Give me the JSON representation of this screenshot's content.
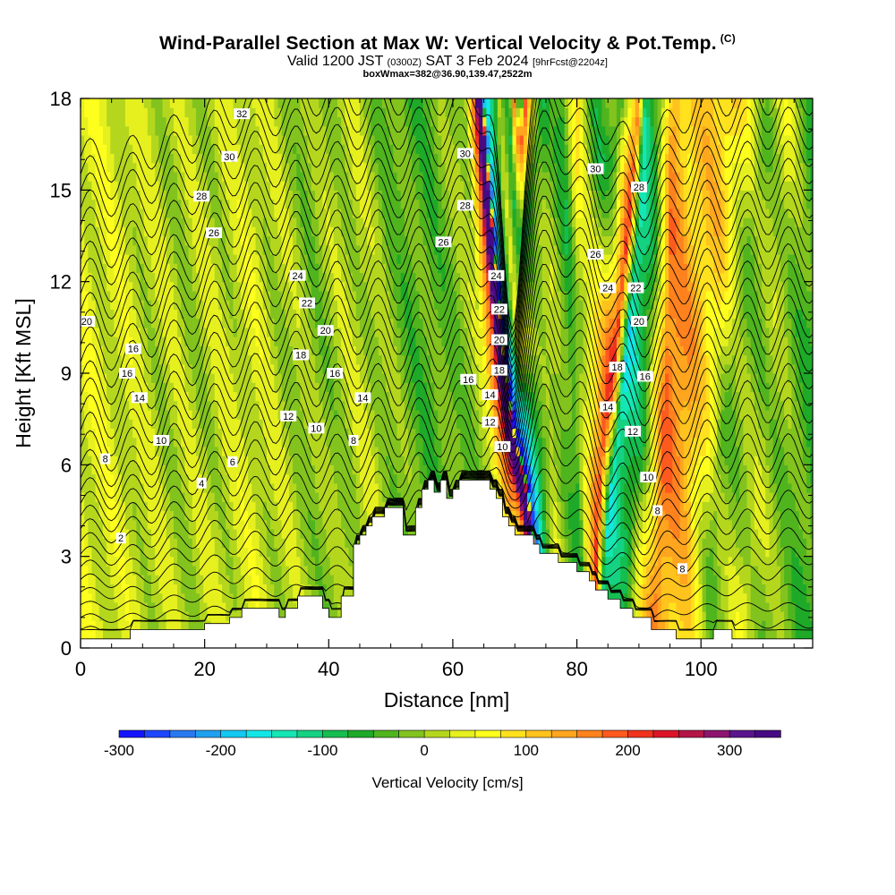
{
  "title": {
    "main": "Wind-Parallel Section at Max W: Vertical Velocity & Pot.Temp.",
    "copyright_mark": "(C)",
    "valid_prefix": "Valid 1200 JST",
    "valid_utc": "(0300Z)",
    "valid_date": "SAT 3 Feb 2024",
    "forecast": "[9hrFcst@2204z]",
    "box_info": "boxWmax=382@36.90,139.47,2522m"
  },
  "colors": {
    "terrain": "#ffffff",
    "contour": "#000000",
    "background": "#9bd61e"
  },
  "chart_data": {
    "type": "heatmap",
    "title": "Wind-Parallel Section at Max W: Vertical Velocity & Pot.Temp.",
    "xlabel": "Distance [nm]",
    "ylabel": "Height [Kft MSL]",
    "xlim": [
      0,
      118
    ],
    "ylim": [
      0,
      18
    ],
    "x_ticks": [
      0,
      20,
      40,
      60,
      80,
      100
    ],
    "y_ticks": [
      0,
      3,
      6,
      9,
      12,
      15,
      18
    ],
    "colorbar": {
      "label": "Vertical Velocity [cm/s]",
      "range": [
        -300,
        375
      ],
      "step": 25,
      "ticks": [
        -300,
        -200,
        -100,
        0,
        100,
        200,
        300
      ],
      "colors": [
        "#1414ff",
        "#1e46ff",
        "#2878f0",
        "#1ea0f0",
        "#14c8f0",
        "#14e6e6",
        "#14e6b4",
        "#14d282",
        "#14be50",
        "#1eaa28",
        "#50b41e",
        "#82c31e",
        "#b4d71e",
        "#e6f01e",
        "#ffff1e",
        "#ffe11e",
        "#ffc31e",
        "#ffa51e",
        "#ff821e",
        "#ff5a1e",
        "#f0321e",
        "#dc1428",
        "#b41446",
        "#8c146e",
        "#5a148c",
        "#460a82"
      ]
    },
    "terrain_profile": [
      [
        0,
        0.3
      ],
      [
        8,
        0.3
      ],
      [
        8,
        0.6
      ],
      [
        20,
        0.6
      ],
      [
        20,
        0.8
      ],
      [
        24,
        0.8
      ],
      [
        24,
        1.0
      ],
      [
        26,
        1.0
      ],
      [
        26,
        1.3
      ],
      [
        32,
        1.3
      ],
      [
        32,
        1.0
      ],
      [
        33,
        1.0
      ],
      [
        33,
        1.3
      ],
      [
        35,
        1.3
      ],
      [
        35,
        1.7
      ],
      [
        39,
        1.7
      ],
      [
        39,
        1.3
      ],
      [
        40,
        1.3
      ],
      [
        40,
        1.0
      ],
      [
        42,
        1.0
      ],
      [
        42,
        1.7
      ],
      [
        44,
        1.7
      ],
      [
        44,
        3.4
      ],
      [
        45,
        3.4
      ],
      [
        45,
        3.7
      ],
      [
        46,
        3.7
      ],
      [
        46,
        4.0
      ],
      [
        47,
        4.0
      ],
      [
        47,
        4.3
      ],
      [
        49,
        4.3
      ],
      [
        49,
        4.6
      ],
      [
        52,
        4.6
      ],
      [
        52,
        3.7
      ],
      [
        54,
        3.7
      ],
      [
        54,
        4.6
      ],
      [
        55,
        4.6
      ],
      [
        55,
        5.2
      ],
      [
        56,
        5.2
      ],
      [
        56,
        5.5
      ],
      [
        57,
        5.5
      ],
      [
        57,
        5.1
      ],
      [
        58,
        5.1
      ],
      [
        58,
        5.5
      ],
      [
        59,
        5.5
      ],
      [
        59,
        4.9
      ],
      [
        60,
        4.9
      ],
      [
        60,
        5.2
      ],
      [
        61,
        5.2
      ],
      [
        61,
        5.5
      ],
      [
        66,
        5.5
      ],
      [
        66,
        5.2
      ],
      [
        67,
        5.2
      ],
      [
        67,
        4.9
      ],
      [
        68,
        4.9
      ],
      [
        68,
        4.3
      ],
      [
        69,
        4.3
      ],
      [
        69,
        4.0
      ],
      [
        70,
        4.0
      ],
      [
        70,
        3.7
      ],
      [
        73,
        3.7
      ],
      [
        73,
        3.4
      ],
      [
        74,
        3.4
      ],
      [
        74,
        3.1
      ],
      [
        77,
        3.1
      ],
      [
        77,
        2.8
      ],
      [
        80,
        2.8
      ],
      [
        80,
        2.5
      ],
      [
        82,
        2.5
      ],
      [
        82,
        2.2
      ],
      [
        83,
        2.2
      ],
      [
        83,
        1.9
      ],
      [
        85,
        1.9
      ],
      [
        85,
        1.6
      ],
      [
        87,
        1.6
      ],
      [
        87,
        1.3
      ],
      [
        89,
        1.3
      ],
      [
        89,
        1.0
      ],
      [
        92,
        1.0
      ],
      [
        92,
        0.6
      ],
      [
        96,
        0.6
      ],
      [
        96,
        0.3
      ],
      [
        102,
        0.3
      ],
      [
        102,
        0.6
      ],
      [
        105,
        0.6
      ],
      [
        105,
        0.3
      ],
      [
        118,
        0.3
      ]
    ],
    "w_lines": [
      {
        "x": [
          0,
          17,
          28,
          39,
          47,
          52,
          57,
          62,
          66.5,
          69,
          70,
          70.8,
          71.5,
          72.5,
          76,
          80,
          84,
          86,
          90,
          94,
          98,
          103,
          110,
          118
        ],
        "w": [
          40,
          10,
          30,
          -10,
          20,
          -20,
          -40,
          -20,
          10,
          180,
          370,
          330,
          -230,
          -150,
          30,
          -60,
          170,
          -120,
          -60,
          140,
          80,
          -20,
          40,
          -50
        ],
        "width": [
          5,
          4,
          5,
          3,
          3,
          3,
          3,
          3,
          2,
          1.4,
          1.1,
          0.8,
          1.1,
          1.4,
          2,
          3,
          5,
          4,
          4,
          5,
          4,
          3,
          3,
          4
        ],
        "tilt": [
          0,
          0,
          0,
          -0.3,
          -0.3,
          -0.3,
          -0.3,
          -0.4,
          -0.6,
          -0.9,
          -1.2,
          -1.3,
          -1.1,
          -0.8,
          -0.2,
          -0.2,
          0.4,
          0.6,
          0.5,
          0.2,
          0,
          0.6,
          0.7,
          0
        ],
        "surge": [
          0,
          0,
          0,
          0,
          0,
          0,
          0,
          0,
          0,
          40,
          80,
          100,
          -80,
          -60,
          0,
          0,
          50,
          -40,
          0,
          40,
          60,
          0,
          -40,
          0
        ]
      }
    ],
    "contour_levels": [
      2,
      3,
      4,
      5,
      6,
      7,
      8,
      9,
      10,
      11,
      12,
      13,
      14,
      15,
      16,
      17,
      18,
      19,
      20,
      21,
      22,
      23,
      24,
      25,
      26,
      27,
      28,
      29,
      30,
      31,
      32,
      33,
      34
    ],
    "contour_labels": [
      {
        "x": 4,
        "y": 6.2,
        "text": "8"
      },
      {
        "x": 6.5,
        "y": 3.6,
        "text": "2"
      },
      {
        "x": 1,
        "y": 10.7,
        "text": "20"
      },
      {
        "x": 8.5,
        "y": 9.8,
        "text": "16"
      },
      {
        "x": 7.5,
        "y": 9,
        "text": "16"
      },
      {
        "x": 9.5,
        "y": 8.2,
        "text": "14"
      },
      {
        "x": 13,
        "y": 6.8,
        "text": "10"
      },
      {
        "x": 19.5,
        "y": 5.4,
        "text": "4"
      },
      {
        "x": 24.5,
        "y": 6.1,
        "text": "6"
      },
      {
        "x": 26,
        "y": 17.5,
        "text": "32"
      },
      {
        "x": 24,
        "y": 16.1,
        "text": "30"
      },
      {
        "x": 19.5,
        "y": 14.8,
        "text": "28"
      },
      {
        "x": 21.5,
        "y": 13.6,
        "text": "26"
      },
      {
        "x": 35,
        "y": 12.2,
        "text": "24"
      },
      {
        "x": 36.5,
        "y": 11.3,
        "text": "22"
      },
      {
        "x": 39.5,
        "y": 10.4,
        "text": "20"
      },
      {
        "x": 35.5,
        "y": 9.6,
        "text": "18"
      },
      {
        "x": 41,
        "y": 9,
        "text": "16"
      },
      {
        "x": 45.5,
        "y": 8.2,
        "text": "14"
      },
      {
        "x": 33.5,
        "y": 7.6,
        "text": "12"
      },
      {
        "x": 38,
        "y": 7.2,
        "text": "10"
      },
      {
        "x": 44,
        "y": 6.8,
        "text": "8"
      },
      {
        "x": 62,
        "y": 16.2,
        "text": "30"
      },
      {
        "x": 62,
        "y": 14.5,
        "text": "28"
      },
      {
        "x": 58.5,
        "y": 13.3,
        "text": "26"
      },
      {
        "x": 67,
        "y": 12.2,
        "text": "24"
      },
      {
        "x": 67.5,
        "y": 11.1,
        "text": "22"
      },
      {
        "x": 67.5,
        "y": 10.1,
        "text": "20"
      },
      {
        "x": 67.5,
        "y": 9.1,
        "text": "18"
      },
      {
        "x": 66,
        "y": 8.3,
        "text": "14"
      },
      {
        "x": 66,
        "y": 7.4,
        "text": "12"
      },
      {
        "x": 68,
        "y": 6.6,
        "text": "10"
      },
      {
        "x": 62.5,
        "y": 8.8,
        "text": "16"
      },
      {
        "x": 83,
        "y": 15.7,
        "text": "30"
      },
      {
        "x": 90,
        "y": 15.1,
        "text": "28"
      },
      {
        "x": 83,
        "y": 12.9,
        "text": "26"
      },
      {
        "x": 85,
        "y": 11.8,
        "text": "24"
      },
      {
        "x": 89.5,
        "y": 11.8,
        "text": "22"
      },
      {
        "x": 90,
        "y": 10.7,
        "text": "20"
      },
      {
        "x": 86.5,
        "y": 9.2,
        "text": "18"
      },
      {
        "x": 91,
        "y": 8.9,
        "text": "16"
      },
      {
        "x": 85,
        "y": 7.9,
        "text": "14"
      },
      {
        "x": 89,
        "y": 7.1,
        "text": "12"
      },
      {
        "x": 91.5,
        "y": 5.6,
        "text": "10"
      },
      {
        "x": 93,
        "y": 4.5,
        "text": "8"
      },
      {
        "x": 97,
        "y": 2.6,
        "text": "8"
      }
    ]
  }
}
